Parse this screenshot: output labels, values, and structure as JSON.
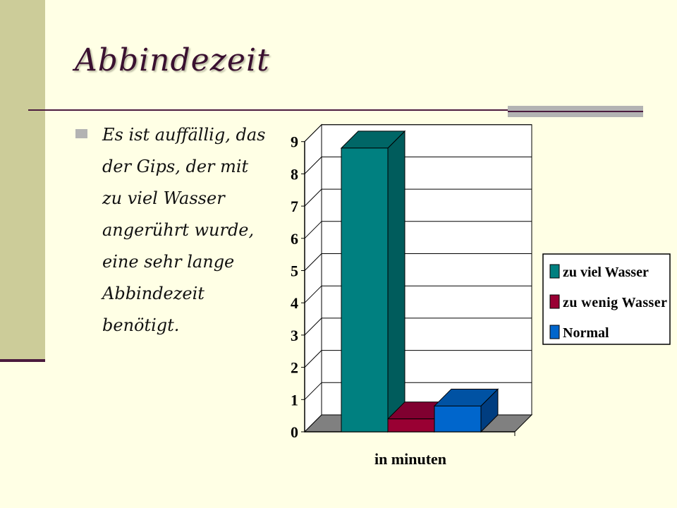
{
  "slide": {
    "title": "Abbindezeit",
    "bullet": "Es ist auffällig, das der Gips, der mit zu viel Wasser angerührt wurde, eine sehr lange Abbindezeit benötigt."
  },
  "colors": {
    "background": "#FFFFE5",
    "accent_band": "#CCCC99",
    "title": "#3A1030",
    "rule": "#4B1B3E"
  },
  "chart_data": {
    "type": "bar",
    "categories": [
      "in minuten"
    ],
    "series": [
      {
        "name": "zu viel Wasser",
        "values": [
          8.8
        ],
        "color": "#008080",
        "side": "#005C5C",
        "top": "#006666"
      },
      {
        "name": "zu wenig Wasser",
        "values": [
          0.4
        ],
        "color": "#990033",
        "side": "#660022",
        "top": "#800030"
      },
      {
        "name": "Normal",
        "values": [
          0.8
        ],
        "color": "#0066CC",
        "side": "#003D80",
        "top": "#0052A3"
      }
    ],
    "title": "",
    "xlabel": "in minuten",
    "ylabel": "",
    "ylim": [
      0,
      9
    ],
    "yticks": [
      "0",
      "1",
      "2",
      "3",
      "4",
      "5",
      "6",
      "7",
      "8",
      "9"
    ],
    "grid": true,
    "legend": "right"
  }
}
